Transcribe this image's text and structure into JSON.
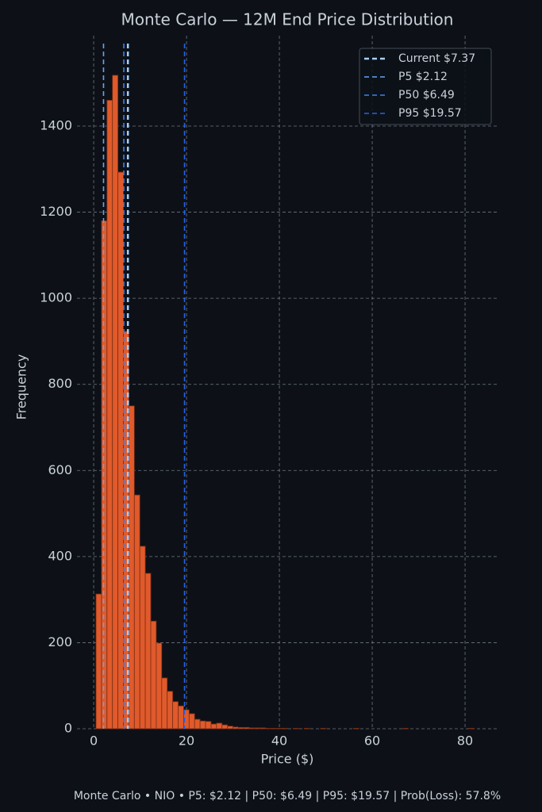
{
  "chart_data": {
    "type": "histogram",
    "title": "Monte Carlo — 12M End Price Distribution",
    "x_label": "Price ($)",
    "y_label": "Frequency",
    "footer": "Monte Carlo • NIO • P5: $2.12 | P50: $6.49 | P95: $19.57 | Prob(Loss): 57.8%",
    "color": "#e05a2b",
    "edge_color": "#7a2e14",
    "bins": [
      0.5,
      1.68,
      2.86,
      4.04,
      5.22,
      6.4,
      7.58,
      8.76,
      9.94,
      11.12,
      12.3,
      13.48,
      14.66,
      15.84,
      17.02,
      18.2,
      19.38,
      20.56,
      21.74,
      22.92,
      24.1,
      25.28,
      26.46,
      27.64,
      28.82,
      30,
      31.18,
      32.36,
      33.54,
      34.72,
      35.9,
      37.08,
      38.26,
      39.44,
      40.62,
      41.8,
      42.98,
      44.16,
      45.34,
      46.52,
      47.7,
      48.88,
      50.06,
      51.24,
      52.42,
      53.6,
      54.78,
      55.96,
      57.14,
      58.32,
      59.5,
      60.68,
      61.86,
      63.04,
      64.22,
      65.4,
      66.58,
      67.76,
      68.94,
      70.12,
      71.3,
      72.48,
      73.66,
      74.84,
      76.02,
      77.2,
      78.38,
      79.56,
      80.74,
      81.92,
      83.1
    ],
    "counts": [
      313,
      1180,
      1460,
      1518,
      1293,
      923,
      750,
      543,
      424,
      361,
      250,
      199,
      118,
      87,
      63,
      53,
      44,
      35,
      22,
      18,
      17,
      11,
      13,
      9,
      6,
      4,
      3,
      3,
      2,
      2,
      2,
      1,
      1,
      1,
      1,
      0,
      1,
      0,
      1,
      0,
      0,
      1,
      0,
      0,
      0,
      0,
      0,
      1,
      0,
      0,
      0,
      0,
      0,
      0,
      0,
      0,
      1,
      0,
      0,
      0,
      0,
      0,
      0,
      0,
      0,
      0,
      0,
      0,
      1,
      0
    ],
    "vlines": [
      {
        "label": "Current $7.37",
        "value": 7.37,
        "color": "#a5d0ff"
      },
      {
        "label": "P5 $2.12",
        "value": 2.12,
        "color": "#60a5fa"
      },
      {
        "label": "P50 $6.49",
        "value": 6.49,
        "color": "#3b82f6"
      },
      {
        "label": "P95 $19.57",
        "value": 19.57,
        "color": "#2563eb"
      }
    ],
    "xlim": [
      -3.6,
      87
    ],
    "ylim": [
      0,
      1610
    ],
    "xticks": [
      0,
      20,
      40,
      60,
      80
    ],
    "yticks": [
      0,
      200,
      400,
      600,
      800,
      1000,
      1200,
      1400
    ],
    "grid": true,
    "legend": "upper right"
  }
}
